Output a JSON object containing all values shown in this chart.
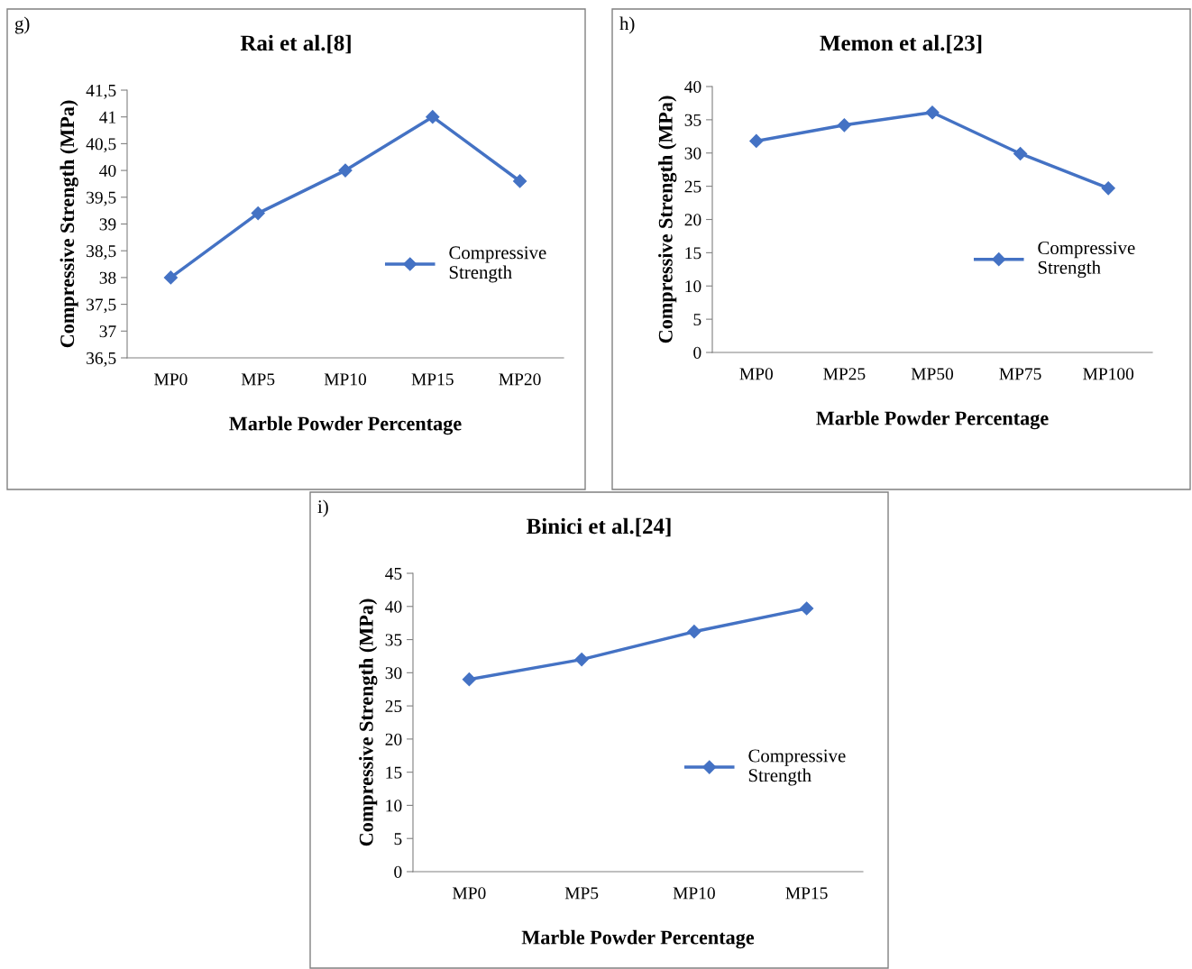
{
  "chart_data": [
    {
      "type": "line",
      "title": "Rai et al.[8]",
      "xlabel": "Marble Powder Percentage",
      "ylabel": "Compressive Strength (MPa)",
      "annotations": [
        "g)"
      ],
      "categories": [
        "MP0",
        "MP5",
        "MP10",
        "MP15",
        "MP20"
      ],
      "series": [
        {
          "name": "Compressive Strength",
          "color": "#4472c4",
          "values": [
            38,
            39.2,
            40,
            41,
            39.8
          ]
        }
      ],
      "ylim": [
        36.5,
        41.5
      ],
      "yticks": [
        {
          "value": 36.5,
          "label": "36,5"
        },
        37,
        {
          "value": 37.5,
          "label": "37,5"
        },
        38,
        {
          "value": 38.5,
          "label": "38,5"
        },
        39,
        {
          "value": 39.5,
          "label": "39,5"
        },
        40,
        {
          "value": 40.5,
          "label": "40,5"
        },
        41,
        {
          "value": 41.5,
          "label": "41,5"
        }
      ],
      "grid": false,
      "legend": "right",
      "marker": "diamond",
      "line_style": "solid"
    },
    {
      "type": "line",
      "title": "Memon et al.[23]",
      "xlabel": "Marble Powder Percentage",
      "ylabel": "Compressive Strength (MPa)",
      "annotations": [
        "h)"
      ],
      "categories": [
        "MP0",
        "MP25",
        "MP50",
        "MP75",
        "MP100"
      ],
      "series": [
        {
          "name": "Compressive Strength",
          "color": "#4472c4",
          "values": [
            31.8,
            34.2,
            36.1,
            29.9,
            24.7
          ]
        }
      ],
      "ylim": [
        0,
        40
      ],
      "yticks": [
        0,
        5,
        10,
        15,
        20,
        25,
        30,
        35,
        40
      ],
      "grid": false,
      "legend": "right",
      "marker": "diamond",
      "line_style": "solid"
    },
    {
      "type": "line",
      "title": "Binici et al.[24]",
      "xlabel": "Marble Powder Percentage",
      "ylabel": "Compressive Strength (MPa)",
      "annotations": [
        "i)"
      ],
      "categories": [
        "MP0",
        "MP5",
        "MP10",
        "MP15"
      ],
      "series": [
        {
          "name": "Compressive Strength",
          "color": "#4472c4",
          "values": [
            29,
            32,
            36.2,
            39.7
          ]
        }
      ],
      "ylim": [
        0,
        45
      ],
      "yticks": [
        0,
        5,
        10,
        15,
        20,
        25,
        30,
        35,
        40,
        45
      ],
      "grid": false,
      "legend": "right",
      "marker": "diamond",
      "line_style": "solid"
    }
  ]
}
